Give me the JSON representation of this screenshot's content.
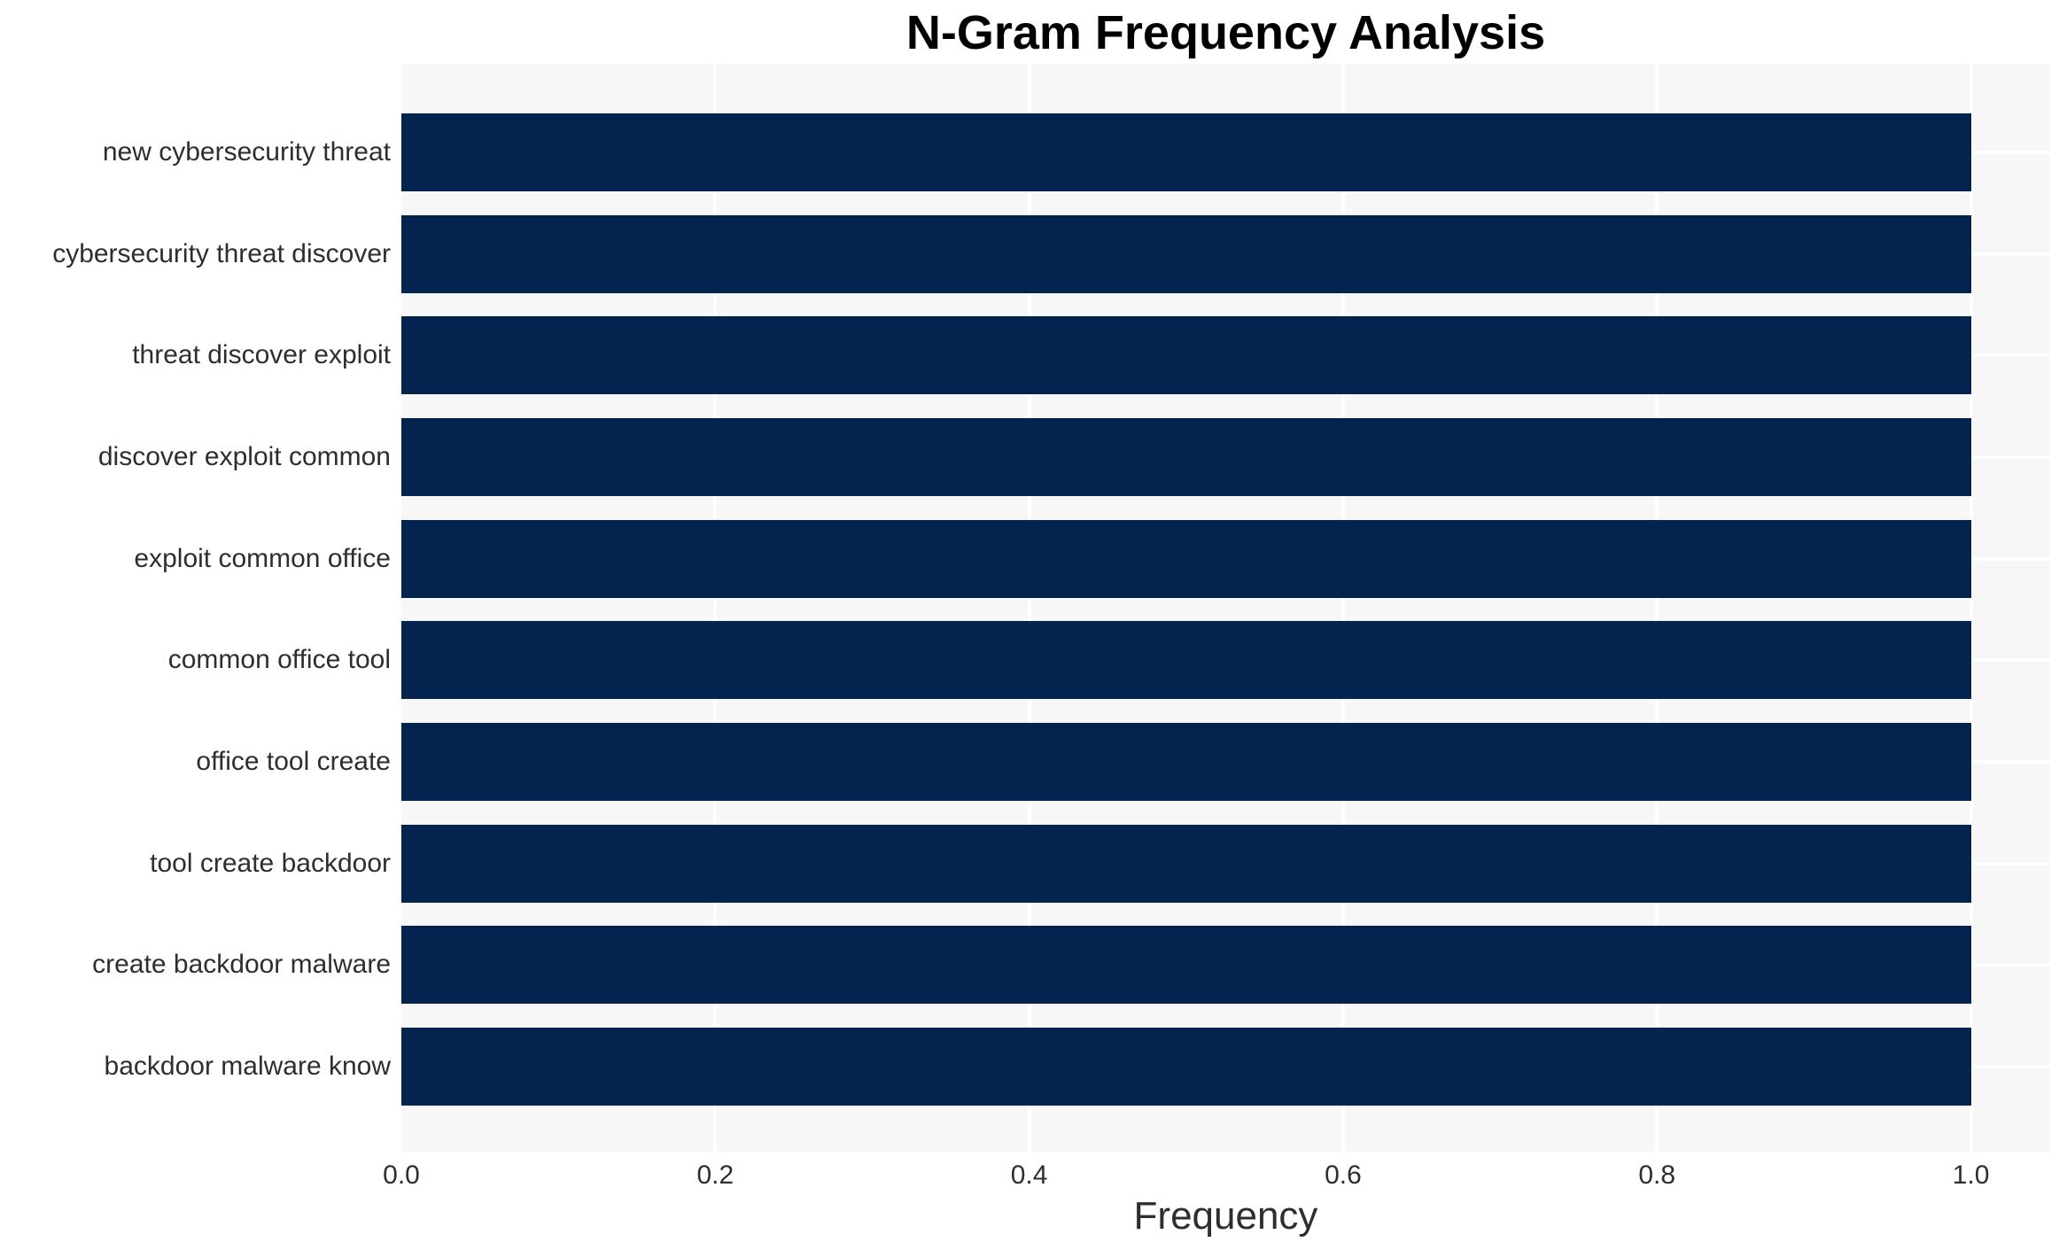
{
  "chart_data": {
    "type": "bar",
    "orientation": "horizontal",
    "title": "N-Gram Frequency Analysis",
    "xlabel": "Frequency",
    "ylabel": "",
    "categories": [
      "new cybersecurity threat",
      "cybersecurity threat discover",
      "threat discover exploit",
      "discover exploit common",
      "exploit common office",
      "common office tool",
      "office tool create",
      "tool create backdoor",
      "create backdoor malware",
      "backdoor malware know"
    ],
    "values": [
      1.0,
      1.0,
      1.0,
      1.0,
      1.0,
      1.0,
      1.0,
      1.0,
      1.0,
      1.0
    ],
    "xticks": [
      0.0,
      0.2,
      0.4,
      0.6,
      0.8,
      1.0
    ],
    "xtick_labels": [
      "0.0",
      "0.2",
      "0.4",
      "0.6",
      "0.8",
      "1.0"
    ],
    "xlim": [
      0,
      1.0505
    ],
    "grid": true,
    "legend": "none",
    "colors": {
      "bar": "#02244e",
      "plot_background": "#f7f7f8",
      "gridline": "#ffffff",
      "tick_text": "#2e2e2e",
      "title_text": "#000000"
    }
  }
}
